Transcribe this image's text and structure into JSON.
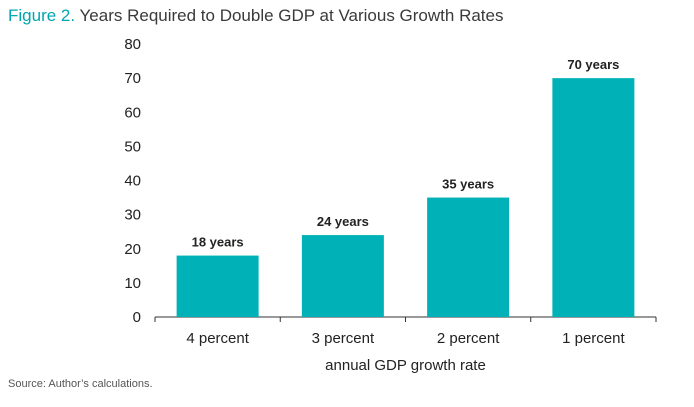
{
  "figure_label": "Figure 2.",
  "source": "Source: Author’s calculations.",
  "colors": {
    "bar": "#00b2b8",
    "accent": "#00a7b0",
    "axis": "#333333"
  },
  "chart_data": {
    "type": "bar",
    "title": "Years Required to Double GDP at Various Growth Rates",
    "categories": [
      "4 percent",
      "3 percent",
      "2 percent",
      "1 percent"
    ],
    "values": [
      18,
      24,
      35,
      70
    ],
    "data_labels": [
      "18 years",
      "24 years",
      "35 years",
      "70 years"
    ],
    "xlabel": "annual GDP growth rate",
    "ylabel": "",
    "ylim": [
      0,
      80
    ],
    "yticks": [
      0,
      10,
      20,
      30,
      40,
      50,
      60,
      70,
      80
    ],
    "grid": false,
    "legend": "none"
  }
}
